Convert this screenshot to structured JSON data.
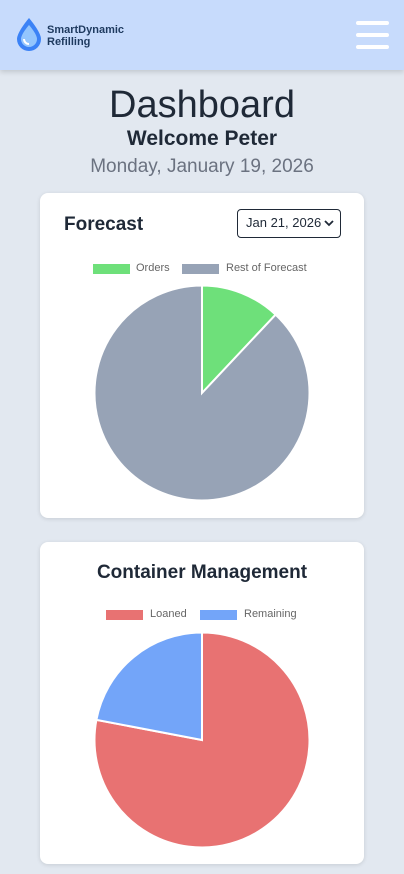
{
  "header": {
    "brand_line1": "SmartDynamic",
    "brand_line2": "Refilling",
    "logo_icon": "water-drop-icon",
    "menu_icon": "hamburger-menu-icon",
    "bg_color": "#c7dbfc"
  },
  "page": {
    "title": "Dashboard",
    "welcome": "Welcome Peter",
    "date": "Monday, January 19, 2026"
  },
  "forecast": {
    "title": "Forecast",
    "selected_date": "Jan 21, 2026"
  },
  "containers": {
    "title": "Container Management"
  },
  "chart_data": [
    {
      "type": "pie",
      "title": "Forecast",
      "categories": [
        "Orders",
        "Rest of Forecast"
      ],
      "values": [
        12,
        88
      ],
      "colors": [
        "#6ee07a",
        "#97a3b6"
      ],
      "legend": "top"
    },
    {
      "type": "pie",
      "title": "Container Management",
      "categories": [
        "Loaned",
        "Remaining"
      ],
      "values": [
        78,
        22
      ],
      "colors": [
        "#e87272",
        "#73a5f9"
      ],
      "legend": "top"
    }
  ]
}
